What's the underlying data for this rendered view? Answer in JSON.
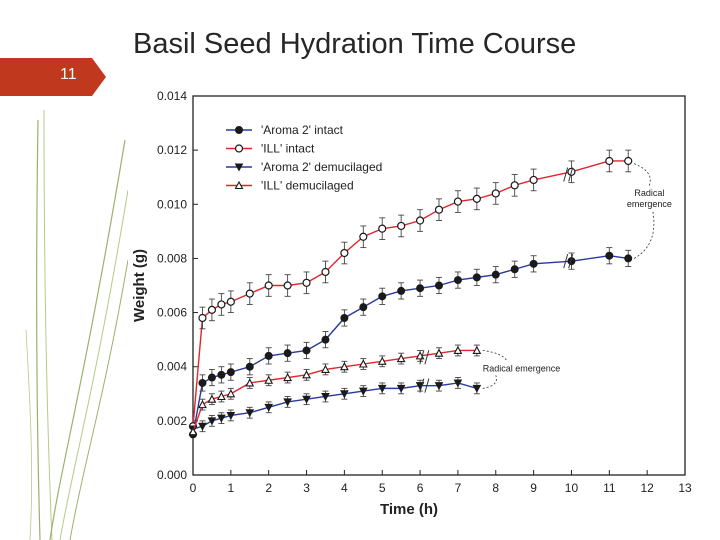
{
  "slide": {
    "title": "Basil Seed Hydration Time Course",
    "number": "11",
    "accent_color": "#C0391E"
  },
  "chart_data": {
    "type": "line",
    "title": "",
    "xlabel": "Time (h)",
    "ylabel": "Weight (g)",
    "xlim": [
      0,
      13
    ],
    "ylim": [
      0,
      0.014
    ],
    "xticks": [
      "0",
      "1",
      "2",
      "3",
      "4",
      "5",
      "6",
      "7",
      "8",
      "9",
      "10",
      "11",
      "12",
      "13"
    ],
    "yticks": [
      "0.000",
      "0.002",
      "0.004",
      "0.006",
      "0.008",
      "0.010",
      "0.012",
      "0.014"
    ],
    "grid": false,
    "legend_position": "top-left",
    "series": [
      {
        "name": "'Aroma 2' intact",
        "color": "#1a1a1a",
        "line_color": "#2a3a9c",
        "marker": "circle-filled",
        "x": [
          0,
          0.25,
          0.5,
          0.75,
          1,
          1.5,
          2,
          2.5,
          3,
          3.5,
          4,
          4.5,
          5,
          5.5,
          6,
          6.5,
          7,
          7.5,
          8,
          8.5,
          9,
          10,
          11,
          11.5
        ],
        "y": [
          0.0015,
          0.0034,
          0.0036,
          0.0037,
          0.0038,
          0.004,
          0.0044,
          0.0045,
          0.0046,
          0.005,
          0.0058,
          0.0062,
          0.0066,
          0.0068,
          0.0069,
          0.007,
          0.0072,
          0.0073,
          0.0074,
          0.0076,
          0.0078,
          0.0079,
          0.0081,
          0.008
        ],
        "err": 0.0003
      },
      {
        "name": "'ILL' intact",
        "color": "#1a1a1a",
        "line_color": "#e0262b",
        "marker": "circle-open",
        "x": [
          0,
          0.25,
          0.5,
          0.75,
          1,
          1.5,
          2,
          2.5,
          3,
          3.5,
          4,
          4.5,
          5,
          5.5,
          6,
          6.5,
          7,
          7.5,
          8,
          8.5,
          9,
          10,
          11,
          11.5
        ],
        "y": [
          0.0018,
          0.0058,
          0.0061,
          0.0063,
          0.0064,
          0.0067,
          0.007,
          0.007,
          0.0071,
          0.0075,
          0.0082,
          0.0088,
          0.0091,
          0.0092,
          0.0094,
          0.0098,
          0.0101,
          0.0102,
          0.0104,
          0.0107,
          0.0109,
          0.0112,
          0.0116,
          0.0116
        ],
        "err": 0.0004
      },
      {
        "name": "'Aroma 2' demucilaged",
        "color": "#1a1a1a",
        "line_color": "#2a3a9c",
        "marker": "triangle-down-filled",
        "x": [
          0,
          0.25,
          0.5,
          0.75,
          1,
          1.5,
          2,
          2.5,
          3,
          3.5,
          4,
          4.5,
          5,
          5.5,
          6,
          6.5,
          7,
          7.5
        ],
        "y": [
          0.0017,
          0.0018,
          0.002,
          0.0021,
          0.0022,
          0.0023,
          0.0025,
          0.0027,
          0.0028,
          0.0029,
          0.003,
          0.0031,
          0.0032,
          0.0032,
          0.0033,
          0.0033,
          0.0034,
          0.0032
        ],
        "err": 0.0002
      },
      {
        "name": "'ILL' demucilaged",
        "color": "#1a1a1a",
        "line_color": "#e0262b",
        "marker": "triangle-up-open",
        "x": [
          0,
          0.25,
          0.5,
          0.75,
          1,
          1.5,
          2,
          2.5,
          3,
          3.5,
          4,
          4.5,
          5,
          5.5,
          6,
          6.5,
          7,
          7.5
        ],
        "y": [
          0.0016,
          0.0026,
          0.0028,
          0.0029,
          0.003,
          0.0034,
          0.0035,
          0.0036,
          0.0037,
          0.0039,
          0.004,
          0.0041,
          0.0042,
          0.0043,
          0.0044,
          0.0045,
          0.0046,
          0.0046
        ],
        "err": 0.0002
      }
    ],
    "annotations": [
      {
        "text": "Radical",
        "text2": "emergence",
        "target": "intact"
      },
      {
        "text": "Radical emergence",
        "target": "demucilaged"
      }
    ]
  }
}
